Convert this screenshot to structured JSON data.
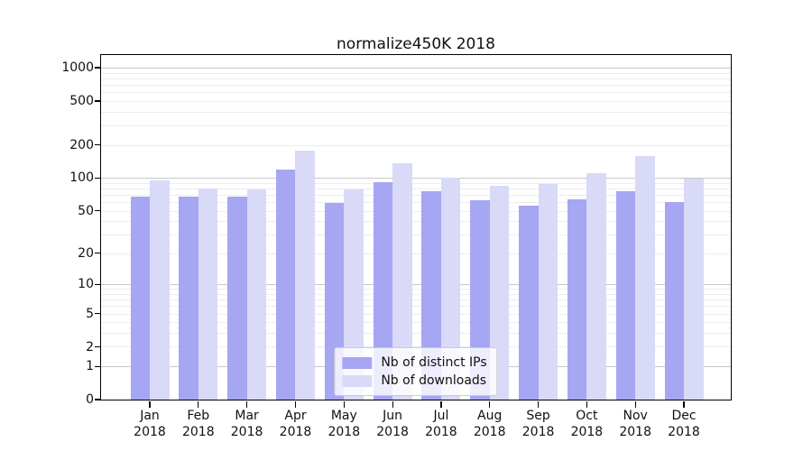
{
  "chart_data": {
    "type": "bar",
    "title": "normalize450K 2018",
    "categories": [
      "Jan 2018",
      "Feb 2018",
      "Mar 2018",
      "Apr 2018",
      "May 2018",
      "Jun 2018",
      "Jul 2018",
      "Aug 2018",
      "Sep 2018",
      "Oct 2018",
      "Nov 2018",
      "Dec 2018"
    ],
    "series": [
      {
        "name": "Nb of distinct IPs",
        "color": "#a6a6f3",
        "values": [
          67,
          68,
          67,
          120,
          59,
          92,
          76,
          63,
          56,
          64,
          75,
          60
        ]
      },
      {
        "name": "Nb of downloads",
        "color": "#d9d9f8",
        "values": [
          95,
          80,
          79,
          178,
          79,
          137,
          100,
          85,
          88,
          110,
          157,
          98
        ]
      }
    ],
    "xlabel": "",
    "ylabel": "",
    "yscale": "log1p",
    "ylim": [
      0,
      1280
    ],
    "yticks": [
      0,
      1,
      2,
      5,
      10,
      20,
      50,
      100,
      200,
      500,
      1000
    ],
    "grid": true,
    "legend_position": "lower center",
    "colors": {
      "grid_major": "#c8c8c8",
      "grid_minor": "#ededed",
      "spine": "#000000",
      "text": "#111111",
      "legend_border": "#cccccc",
      "legend_bg": "rgba(255,255,255,0.8)"
    }
  }
}
